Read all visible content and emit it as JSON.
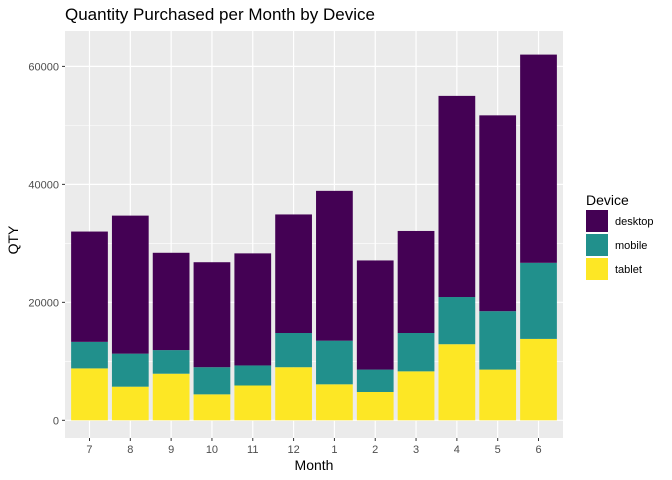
{
  "chart_data": {
    "type": "bar",
    "stacked": true,
    "title": "Quantity Purchased per Month by Device",
    "xlabel": "Month",
    "ylabel": "QTY",
    "categories": [
      "7",
      "8",
      "9",
      "10",
      "11",
      "12",
      "1",
      "2",
      "3",
      "4",
      "5",
      "6"
    ],
    "series": [
      {
        "name": "tablet",
        "color": "#fde725",
        "values": [
          8800,
          5700,
          7900,
          4400,
          5900,
          9000,
          6100,
          4800,
          8300,
          12900,
          8600,
          13800
        ]
      },
      {
        "name": "mobile",
        "color": "#21908c",
        "values": [
          4500,
          5600,
          4000,
          4600,
          3400,
          5800,
          7400,
          3800,
          6500,
          8000,
          9900,
          12900
        ]
      },
      {
        "name": "desktop",
        "color": "#440154",
        "values": [
          18700,
          23400,
          16500,
          17800,
          19000,
          20100,
          25400,
          18500,
          17300,
          34100,
          33200,
          35300
        ]
      }
    ],
    "ylim": [
      -3000,
      66000
    ],
    "yticks": [
      0,
      20000,
      40000,
      60000
    ],
    "ytick_labels": [
      "0",
      "20000",
      "40000",
      "60000"
    ],
    "grid": true,
    "legend": {
      "title": "Device",
      "position": "right",
      "entries": [
        "desktop",
        "mobile",
        "tablet"
      ]
    },
    "colors": {
      "panel_background": "#ebebeb",
      "grid": "#ffffff",
      "desktop": "#440154",
      "mobile": "#21908c",
      "tablet": "#fde725"
    }
  }
}
